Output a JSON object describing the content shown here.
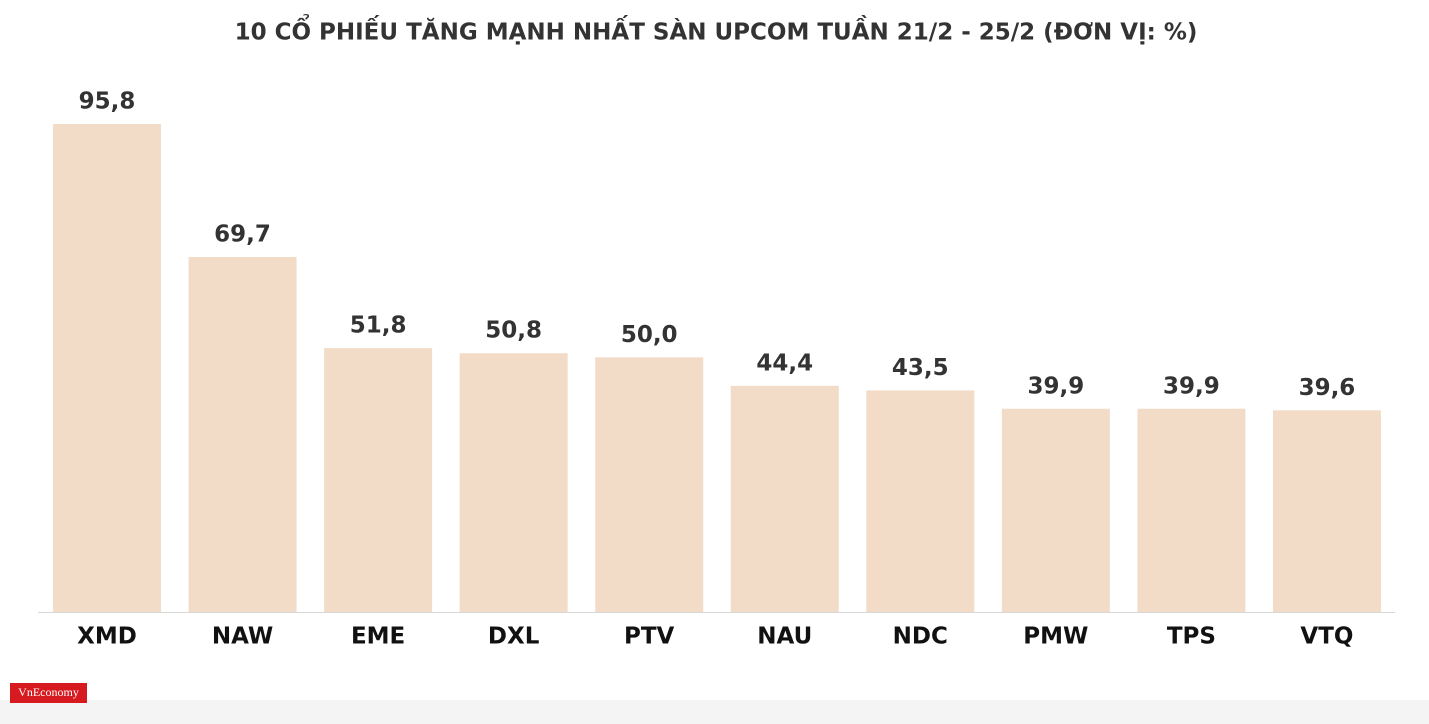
{
  "chart_data": {
    "type": "bar",
    "title": "10 CỔ PHIẾU TĂNG MẠNH NHẤT SÀN UPCOM TUẦN 21/2 - 25/2 (ĐƠN VỊ: %)",
    "categories": [
      "XMD",
      "NAW",
      "EME",
      "DXL",
      "PTV",
      "NAU",
      "NDC",
      "PMW",
      "TPS",
      "VTQ"
    ],
    "values": [
      95.8,
      69.7,
      51.8,
      50.8,
      50.0,
      44.4,
      43.5,
      39.9,
      39.9,
      39.6
    ],
    "value_labels": [
      "95,8",
      "69,7",
      "51,8",
      "50,8",
      "50,0",
      "44,4",
      "43,5",
      "39,9",
      "39,9",
      "39,6"
    ],
    "color": "#f2dcc7"
  },
  "logo": "VnEconomy"
}
